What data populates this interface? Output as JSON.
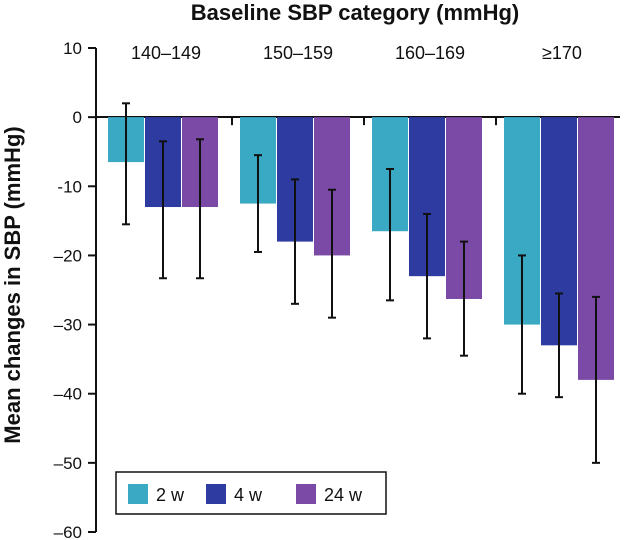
{
  "chart_data": {
    "type": "bar",
    "title": "Baseline SBP category (mmHg)",
    "ylabel": "Mean changes in SBP (mmHg)",
    "xlabel": "",
    "categories": [
      "140–149",
      "150–159",
      "160–169",
      "≥170"
    ],
    "ylim": [
      -60,
      10
    ],
    "yticks": [
      10,
      0,
      -10,
      -20,
      -30,
      -40,
      -50,
      -60
    ],
    "ytick_labels": [
      "10",
      "0",
      "-10",
      "–20",
      "–30",
      "–40",
      "–50",
      "–60"
    ],
    "legend_position": "bottom-left",
    "series": [
      {
        "name": "2 w",
        "color": "#3aa9c3",
        "values": [
          -6.5,
          -12.5,
          -16.5,
          -30
        ],
        "err_low": [
          -15.5,
          -19.5,
          -26.5,
          -40
        ],
        "err_high": [
          2,
          -5.5,
          -7.5,
          -20
        ]
      },
      {
        "name": "4 w",
        "color": "#2e3ba0",
        "values": [
          -13,
          -18,
          -23,
          -33
        ],
        "err_low": [
          -23.3,
          -27,
          -32,
          -40.5
        ],
        "err_high": [
          -3.5,
          -9,
          -14,
          -25.5
        ]
      },
      {
        "name": "24 w",
        "color": "#7b4aa6",
        "values": [
          -13,
          -20,
          -26.3,
          -38
        ],
        "err_low": [
          -23.3,
          -29,
          -34.5,
          -50
        ],
        "err_high": [
          -3.2,
          -10.5,
          -18,
          -26
        ]
      }
    ]
  }
}
